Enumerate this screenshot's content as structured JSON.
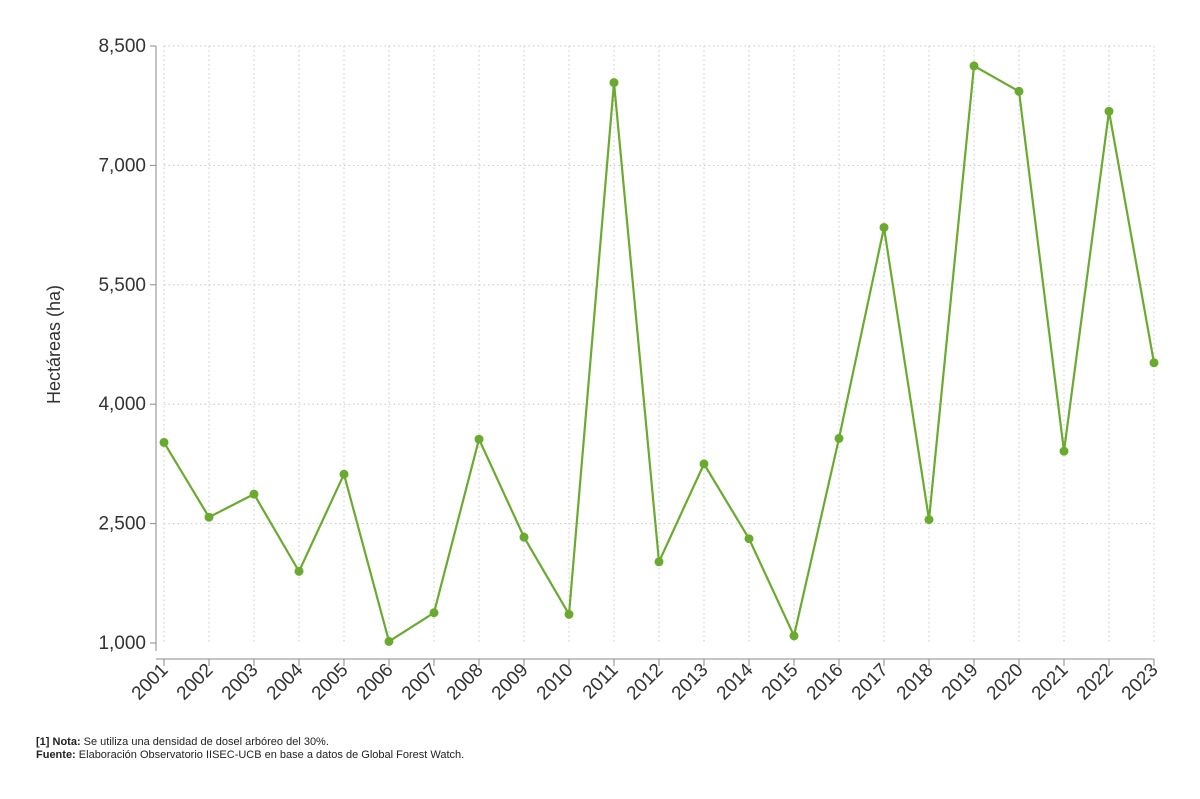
{
  "chart_data": {
    "type": "line",
    "xlabel": "",
    "ylabel": "Hectáreas (ha)",
    "ylim": [
      1000,
      8500
    ],
    "yticks": [
      1000,
      2500,
      4000,
      5500,
      7000,
      8500
    ],
    "ytick_labels": [
      "1,000",
      "2,500",
      "4,000",
      "5,500",
      "7,000",
      "8,500"
    ],
    "grid": true,
    "line_color": "#6aaa2f",
    "categories": [
      "2001",
      "2002",
      "2003",
      "2004",
      "2005",
      "2006",
      "2007",
      "2008",
      "2009",
      "2010",
      "2011",
      "2012",
      "2013",
      "2014",
      "2015",
      "2016",
      "2017",
      "2018",
      "2019",
      "2020",
      "2021",
      "2022",
      "2023"
    ],
    "values": [
      3520,
      2580,
      2870,
      1900,
      3120,
      1020,
      1380,
      3560,
      2330,
      1360,
      8040,
      2020,
      3250,
      2310,
      1090,
      3570,
      6220,
      2550,
      8250,
      7930,
      3410,
      7680,
      4520
    ]
  },
  "footnote": {
    "note_label": "[1] Nota:",
    "note_text": " Se utiliza una densidad de dosel arbóreo del 30%.",
    "source_label": "Fuente:",
    "source_text": " Elaboración Observatorio IISEC-UCB en base a datos de Global Forest Watch."
  }
}
